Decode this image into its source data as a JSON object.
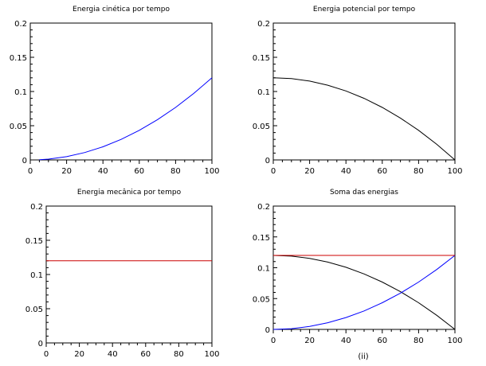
{
  "caption": "(ii)",
  "colors": {
    "blue": "#0000ff",
    "black": "#000000",
    "red": "#cc0000"
  },
  "chart_data": [
    {
      "type": "line",
      "title": "Energia cinética por tempo",
      "xlabel": "",
      "ylabel": "",
      "xlim": [
        0,
        100
      ],
      "ylim": [
        0,
        0.2
      ],
      "xticks": [
        "0",
        "20",
        "40",
        "60",
        "80",
        "100"
      ],
      "yticks": [
        "0",
        "0.05",
        "0.1",
        "0.15",
        "0.2"
      ],
      "grid": false,
      "series": [
        {
          "color": "#0000ff",
          "x": [
            5,
            10,
            20,
            30,
            40,
            50,
            60,
            70,
            80,
            90,
            100
          ],
          "y": [
            0.0003,
            0.0012,
            0.0048,
            0.0108,
            0.0192,
            0.03,
            0.0432,
            0.0588,
            0.0768,
            0.0972,
            0.12
          ]
        }
      ]
    },
    {
      "type": "line",
      "title": "Energia potencial por tempo",
      "xlabel": "",
      "ylabel": "",
      "xlim": [
        0,
        100
      ],
      "ylim": [
        0,
        0.2
      ],
      "xticks": [
        "0",
        "20",
        "40",
        "60",
        "80",
        "100"
      ],
      "yticks": [
        "0",
        "0.05",
        "0.1",
        "0.15",
        "0.2"
      ],
      "grid": false,
      "series": [
        {
          "color": "#000000",
          "x": [
            0,
            10,
            20,
            30,
            40,
            50,
            60,
            70,
            80,
            90,
            100
          ],
          "y": [
            0.12,
            0.1188,
            0.1152,
            0.1092,
            0.1008,
            0.09,
            0.0768,
            0.0612,
            0.0432,
            0.0228,
            0.0
          ]
        }
      ]
    },
    {
      "type": "line",
      "title": "Energia mecânica por tempo",
      "xlabel": "",
      "ylabel": "",
      "xlim": [
        0,
        100
      ],
      "ylim": [
        0,
        0.2
      ],
      "xticks": [
        "0",
        "20",
        "40",
        "60",
        "80",
        "100"
      ],
      "yticks": [
        "0",
        "0.05",
        "0.1",
        "0.15",
        "0.2"
      ],
      "grid": false,
      "series": [
        {
          "color": "#cc0000",
          "x": [
            0,
            100
          ],
          "y": [
            0.12,
            0.12
          ]
        }
      ]
    },
    {
      "type": "line",
      "title": "Soma das energias",
      "xlabel": "",
      "ylabel": "",
      "xlim": [
        0,
        100
      ],
      "ylim": [
        0,
        0.2
      ],
      "xticks": [
        "0",
        "20",
        "40",
        "60",
        "80",
        "100"
      ],
      "yticks": [
        "0",
        "0.05",
        "0.1",
        "0.15",
        "0.2"
      ],
      "grid": false,
      "series": [
        {
          "color": "#000000",
          "x": [
            0,
            10,
            20,
            30,
            40,
            50,
            60,
            70,
            80,
            90,
            100
          ],
          "y": [
            0.12,
            0.1188,
            0.1152,
            0.1092,
            0.1008,
            0.09,
            0.0768,
            0.0612,
            0.0432,
            0.0228,
            0.0
          ]
        },
        {
          "color": "#0000ff",
          "x": [
            0,
            10,
            20,
            30,
            40,
            50,
            60,
            70,
            80,
            90,
            100
          ],
          "y": [
            0.0,
            0.0012,
            0.0048,
            0.0108,
            0.0192,
            0.03,
            0.0432,
            0.0588,
            0.0768,
            0.0972,
            0.12
          ]
        },
        {
          "color": "#cc0000",
          "x": [
            0,
            100
          ],
          "y": [
            0.12,
            0.12
          ]
        }
      ]
    }
  ]
}
